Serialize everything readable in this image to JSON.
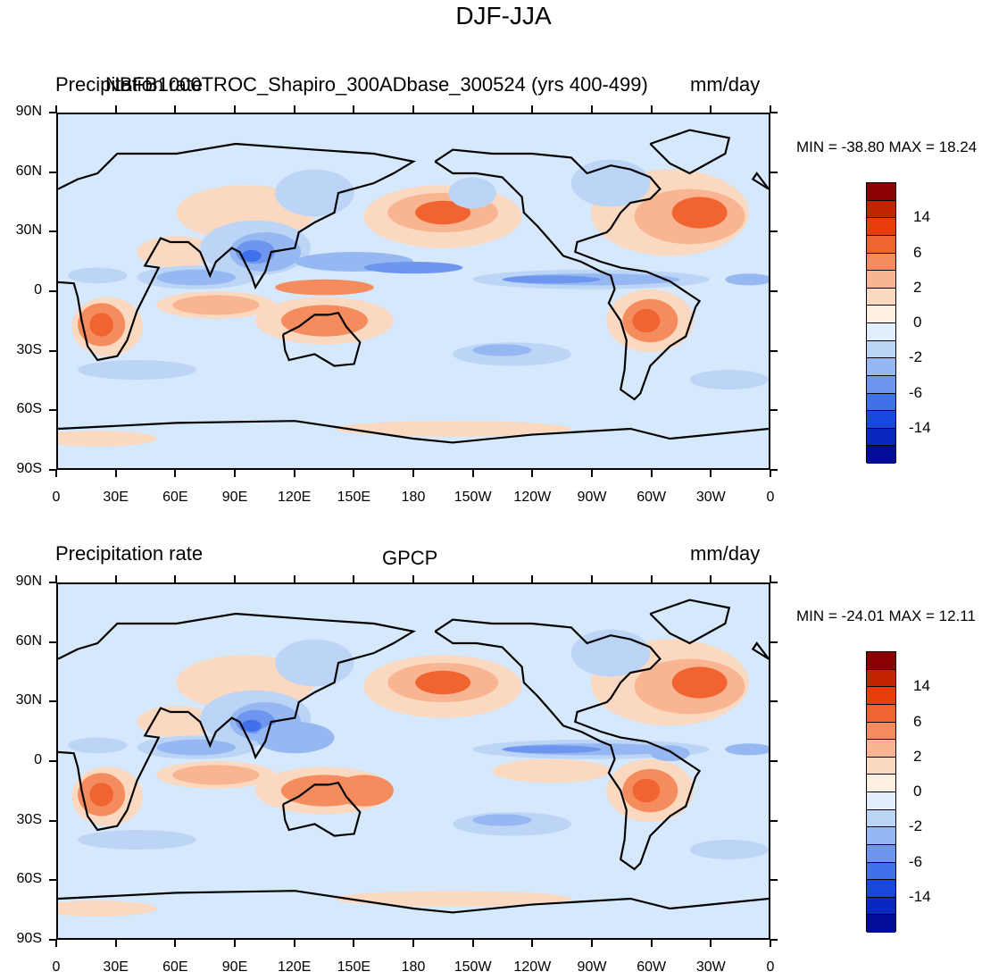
{
  "figure": {
    "title": "DJF-JJA"
  },
  "panels": [
    {
      "left_label": "Precipitation rate",
      "center_label": "NBFB1000TROC_Shapiro_300ADbase_300524 (yrs 400-499)",
      "right_label": "mm/day",
      "stats": "MIN = -38.80 MAX =  18.24"
    },
    {
      "left_label": "Precipitation rate",
      "center_label": "GPCP",
      "right_label": "mm/day",
      "stats": "MIN = -24.01 MAX =  12.11"
    }
  ],
  "axes": {
    "lat_ticks": [
      "90N",
      "60N",
      "30N",
      "0",
      "30S",
      "60S",
      "90S"
    ],
    "lon_ticks": [
      "0",
      "30E",
      "60E",
      "90E",
      "120E",
      "150E",
      "180",
      "150W",
      "120W",
      "90W",
      "60W",
      "30W",
      "0"
    ]
  },
  "colorbar": {
    "labels": [
      "14",
      "6",
      "2",
      "0",
      "-2",
      "-6",
      "-14"
    ],
    "colors": [
      "#8b0000",
      "#c32400",
      "#e83c0a",
      "#f2642f",
      "#f58c5e",
      "#f9b491",
      "#fbd8c0",
      "#fdf0e2",
      "#e2eefb",
      "#bcd4f6",
      "#96b8f2",
      "#6f96ee",
      "#4070ea",
      "#1a46e0",
      "#0a28c0",
      "#020c96"
    ]
  }
}
